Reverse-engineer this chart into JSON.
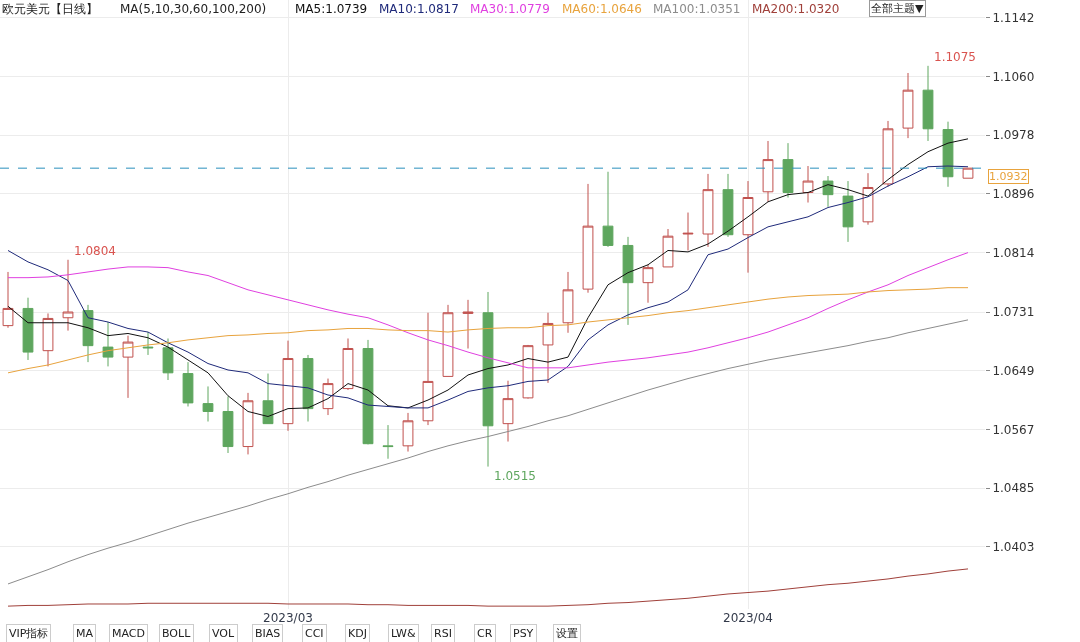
{
  "chart_data": {
    "type": "candlestick",
    "title": "欧元美元【日线】",
    "categories": [
      null,
      null,
      null,
      null,
      null,
      null,
      null,
      null,
      null,
      null,
      null,
      null,
      null,
      null,
      "2023/03",
      null,
      null,
      null,
      null,
      null,
      null,
      null,
      null,
      null,
      null,
      null,
      null,
      null,
      null,
      null,
      null,
      null,
      null,
      null,
      null,
      null,
      null,
      "2023/04",
      null,
      null,
      null,
      null,
      null,
      null,
      null,
      null,
      null,
      null,
      null
    ],
    "ohlc": [
      [
        1.0712,
        1.0787,
        1.0709,
        1.0736
      ],
      [
        1.0736,
        1.0751,
        1.0664,
        1.0675
      ],
      [
        1.0677,
        1.0729,
        1.0655,
        1.0722
      ],
      [
        1.0723,
        1.0804,
        1.0705,
        1.0731
      ],
      [
        1.0733,
        1.0741,
        1.0661,
        1.0684
      ],
      [
        1.0682,
        1.0717,
        1.0655,
        1.0668
      ],
      [
        1.0668,
        1.0698,
        1.0611,
        1.0689
      ],
      [
        1.0682,
        1.0703,
        1.0671,
        1.0681
      ],
      [
        1.0681,
        1.0694,
        1.0636,
        1.0646
      ],
      [
        1.0645,
        1.0661,
        1.0599,
        1.0604
      ],
      [
        1.0603,
        1.0627,
        1.0578,
        1.0592
      ],
      [
        1.0592,
        1.0613,
        1.0534,
        1.0543
      ],
      [
        1.0543,
        1.0618,
        1.0532,
        1.0607
      ],
      [
        1.0607,
        1.0645,
        1.0575,
        1.0575
      ],
      [
        1.0575,
        1.0691,
        1.0565,
        1.0666
      ],
      [
        1.0666,
        1.0671,
        1.0578,
        1.0596
      ],
      [
        1.0596,
        1.0638,
        1.0587,
        1.0631
      ],
      [
        1.0624,
        1.0694,
        1.0622,
        1.068
      ],
      [
        1.068,
        1.0692,
        1.0546,
        1.0547
      ],
      [
        1.0544,
        1.0573,
        1.0526,
        1.0543
      ],
      [
        1.0544,
        1.059,
        1.0536,
        1.0579
      ],
      [
        1.0579,
        1.073,
        1.0573,
        1.0634
      ],
      [
        1.0641,
        1.0741,
        1.0641,
        1.073
      ],
      [
        1.0729,
        1.0748,
        1.068,
        1.0731
      ],
      [
        1.073,
        1.0759,
        1.0515,
        1.0572
      ],
      [
        1.0575,
        1.0635,
        1.055,
        1.061
      ],
      [
        1.0611,
        1.0685,
        1.061,
        1.0684
      ],
      [
        1.0685,
        1.073,
        1.0632,
        1.0715
      ],
      [
        1.0716,
        1.0787,
        1.0702,
        1.0762
      ],
      [
        1.0763,
        1.091,
        1.0758,
        1.0851
      ],
      [
        1.0851,
        1.0927,
        1.0822,
        1.0824
      ],
      [
        1.0824,
        1.0836,
        1.0713,
        1.0772
      ],
      [
        1.0772,
        1.0797,
        1.0744,
        1.0793
      ],
      [
        1.0794,
        1.0847,
        1.0794,
        1.0837
      ],
      [
        1.084,
        1.087,
        1.0817,
        1.0841
      ],
      [
        1.084,
        1.0924,
        1.0822,
        1.0902
      ],
      [
        1.0902,
        1.0924,
        1.0836,
        1.0839
      ],
      [
        1.0839,
        1.0914,
        1.0786,
        1.0891
      ],
      [
        1.0899,
        1.097,
        1.0885,
        1.0944
      ],
      [
        1.0944,
        1.0967,
        1.0891,
        1.0898
      ],
      [
        1.0898,
        1.0935,
        1.0884,
        1.0914
      ],
      [
        1.0914,
        1.0921,
        1.0878,
        1.0895
      ],
      [
        1.0893,
        1.0914,
        1.0829,
        1.085
      ],
      [
        1.0857,
        1.0925,
        1.0853,
        1.0905
      ],
      [
        1.091,
        1.0998,
        1.0906,
        1.0987
      ],
      [
        1.0988,
        1.1065,
        1.0974,
        1.1041
      ],
      [
        1.1041,
        1.1075,
        1.097,
        1.0987
      ],
      [
        1.0986,
        1.0997,
        1.0906,
        1.092
      ],
      [
        1.0918,
        1.0932,
        1.0918,
        1.0932
      ]
    ],
    "colors": [
      "#c0504d",
      "#5ea65e",
      "#c0504d",
      "#c0504d",
      "#5ea65e",
      "#5ea65e",
      "#c0504d",
      "#5ea65e",
      "#5ea65e",
      "#5ea65e",
      "#5ea65e",
      "#5ea65e",
      "#c0504d",
      "#5ea65e",
      "#c0504d",
      "#5ea65e",
      "#c0504d",
      "#c0504d",
      "#5ea65e",
      "#5ea65e",
      "#c0504d",
      "#c0504d",
      "#c0504d",
      "#c0504d",
      "#5ea65e",
      "#c0504d",
      "#c0504d",
      "#c0504d",
      "#c0504d",
      "#c0504d",
      "#5ea65e",
      "#5ea65e",
      "#c0504d",
      "#c0504d",
      "#c0504d",
      "#c0504d",
      "#5ea65e",
      "#c0504d",
      "#c0504d",
      "#5ea65e",
      "#c0504d",
      "#5ea65e",
      "#5ea65e",
      "#c0504d",
      "#c0504d",
      "#c0504d",
      "#5ea65e",
      "#5ea65e",
      "#c0504d"
    ],
    "series": [
      {
        "name": "MA5:1.0739",
        "color": "#111111",
        "type": "line",
        "values": [
          1.0739,
          1.0716,
          1.0716,
          1.0716,
          1.0709,
          1.0698,
          1.0701,
          1.0695,
          1.0682,
          1.0664,
          1.0646,
          1.0614,
          1.0592,
          1.0585,
          1.0596,
          1.0597,
          1.061,
          1.0631,
          1.0622,
          1.06,
          1.0597,
          1.0608,
          1.0622,
          1.0643,
          1.0652,
          1.0657,
          1.0666,
          1.0661,
          1.0668,
          1.0723,
          1.0769,
          1.0786,
          1.0797,
          1.0817,
          1.0815,
          1.0826,
          1.0844,
          1.0864,
          1.0885,
          1.0895,
          1.0898,
          1.0909,
          1.0902,
          1.0893,
          1.0916,
          1.0937,
          1.0955,
          1.0967,
          1.0973
        ]
      },
      {
        "name": "MA10:1.0817",
        "color": "#1f2a7a",
        "type": "line",
        "values": [
          1.0817,
          1.0801,
          1.079,
          1.0775,
          1.0723,
          1.0717,
          1.0708,
          1.0703,
          1.0688,
          1.0675,
          1.0659,
          1.065,
          1.0646,
          1.0631,
          1.0628,
          1.0625,
          1.0615,
          1.0611,
          1.0601,
          1.0599,
          1.0597,
          1.0597,
          1.0608,
          1.062,
          1.0625,
          1.0628,
          1.0634,
          1.0636,
          1.0655,
          1.0692,
          1.0713,
          1.0727,
          1.0737,
          1.0745,
          1.0762,
          1.0811,
          1.0819,
          1.0835,
          1.085,
          1.0857,
          1.0864,
          1.0877,
          1.0884,
          1.0892,
          1.0907,
          1.092,
          1.0934,
          1.0935,
          1.0934
        ]
      },
      {
        "name": "MA30:1.0779",
        "color": "#e040e0",
        "type": "line",
        "values": [
          1.0779,
          1.0779,
          1.078,
          1.0783,
          1.0787,
          1.0791,
          1.0794,
          1.0794,
          1.0793,
          1.0787,
          1.0782,
          1.0772,
          1.0762,
          1.0755,
          1.0748,
          1.0741,
          1.0734,
          1.0728,
          1.0723,
          1.0713,
          1.0702,
          1.0692,
          1.0684,
          1.0675,
          1.0667,
          1.066,
          1.0653,
          1.0653,
          1.0653,
          1.0657,
          1.0661,
          1.0664,
          1.0667,
          1.0671,
          1.0675,
          1.0681,
          1.0688,
          1.0695,
          1.0703,
          1.0713,
          1.0723,
          1.0736,
          1.0748,
          1.0759,
          1.0769,
          1.0782,
          1.0793,
          1.0804,
          1.0814
        ]
      },
      {
        "name": "MA60:1.0646",
        "color": "#e8a33d",
        "type": "line",
        "values": [
          1.0646,
          1.0652,
          1.0657,
          1.0664,
          1.0671,
          1.0677,
          1.0681,
          1.0685,
          1.0688,
          1.0692,
          1.0695,
          1.0698,
          1.0699,
          1.0701,
          1.0702,
          1.0705,
          1.0706,
          1.0708,
          1.0708,
          1.0706,
          1.0705,
          1.0705,
          1.0703,
          1.0706,
          1.0708,
          1.0709,
          1.0709,
          1.0712,
          1.0713,
          1.0717,
          1.072,
          1.0723,
          1.0726,
          1.073,
          1.0733,
          1.0737,
          1.0741,
          1.0745,
          1.0749,
          1.0752,
          1.0754,
          1.0755,
          1.0756,
          1.0759,
          1.0761,
          1.0762,
          1.0763,
          1.0765,
          1.0765
        ]
      },
      {
        "name": "MA100:1.0351",
        "color": "#8c8c8c",
        "type": "line",
        "values": [
          1.0351,
          1.0361,
          1.0371,
          1.0382,
          1.0392,
          1.0401,
          1.0409,
          1.0418,
          1.0427,
          1.0436,
          1.0444,
          1.0452,
          1.046,
          1.0469,
          1.0477,
          1.0486,
          1.0494,
          1.0503,
          1.0511,
          1.0519,
          1.0527,
          1.0536,
          1.0544,
          1.0551,
          1.0557,
          1.0564,
          1.0571,
          1.0579,
          1.0586,
          1.0595,
          1.0604,
          1.0613,
          1.0622,
          1.063,
          1.0638,
          1.0645,
          1.0652,
          1.0658,
          1.0664,
          1.0669,
          1.0674,
          1.0679,
          1.0684,
          1.069,
          1.0695,
          1.0702,
          1.0708,
          1.0714,
          1.072
        ]
      },
      {
        "name": "MA200:1.0320",
        "color": "#a0403a",
        "type": "line",
        "values": [
          1.032,
          1.0321,
          1.0321,
          1.0322,
          1.0323,
          1.0323,
          1.0323,
          1.0324,
          1.0324,
          1.0324,
          1.0324,
          1.0324,
          1.0324,
          1.0324,
          1.0323,
          1.0323,
          1.0323,
          1.0323,
          1.0322,
          1.0322,
          1.0321,
          1.0321,
          1.0321,
          1.0321,
          1.032,
          1.032,
          1.032,
          1.032,
          1.0321,
          1.0322,
          1.0324,
          1.0325,
          1.0327,
          1.0329,
          1.0331,
          1.0334,
          1.0337,
          1.0339,
          1.0341,
          1.0344,
          1.0347,
          1.035,
          1.0352,
          1.0355,
          1.0358,
          1.0362,
          1.0365,
          1.0369,
          1.0372
        ]
      }
    ],
    "ylim": [
      1.0316,
      1.1167
    ],
    "yticks": [
      1.1142,
      {
        "value": 1.106,
        "label": "1.1060"
      },
      1.0978,
      1.0896,
      1.0814,
      1.0731,
      1.0649,
      1.0567,
      1.0485,
      1.0403
    ],
    "grid": true,
    "ref_lines": [
      {
        "axis": "y",
        "value": 1.0932,
        "label": "1.0932",
        "color": "#2a8fbd",
        "line_style": "dashed"
      }
    ],
    "annotations": [
      "MA(5,10,30,60,100,200)",
      "全部主题▼",
      "VIP指标",
      "MA",
      "MACD",
      "BOLL",
      "VOL",
      "BIAS",
      "CCI",
      "KDJ",
      "LW&",
      "RSI",
      "CR",
      "PSY",
      "设置",
      "1.0804",
      "1.0515",
      "1.1075"
    ]
  }
}
